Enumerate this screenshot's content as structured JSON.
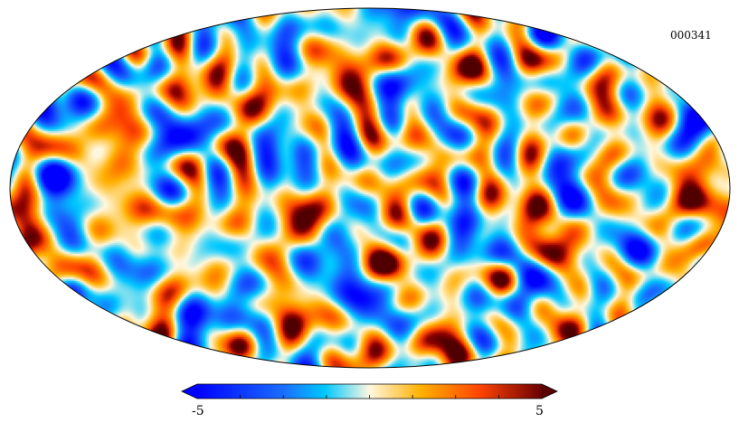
{
  "map": {
    "label": "000341",
    "projection": "mollweide",
    "palette": "planck-cmb"
  },
  "colorbar": {
    "min_label": "-5",
    "max_label": "5",
    "min_value": -5,
    "max_value": 5,
    "extend": "both",
    "colors": [
      "#0000ff",
      "#1a5cff",
      "#00c0ff",
      "#ffffff",
      "#ffb000",
      "#ff4a00",
      "#8c0000",
      "#500000"
    ]
  }
}
